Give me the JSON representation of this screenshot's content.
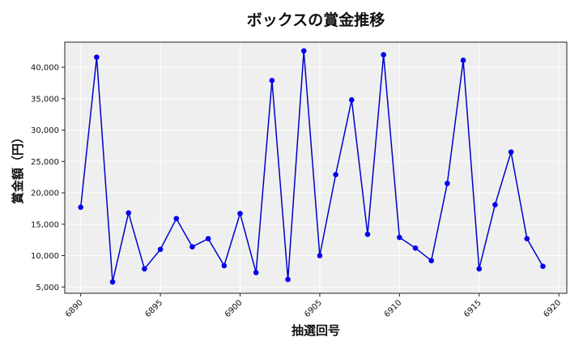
{
  "chart_data": {
    "type": "line",
    "title": "ボックスの賞金推移",
    "xlabel": "抽選回号",
    "ylabel": "賞金額（円）",
    "xlim": [
      6889,
      6920.5
    ],
    "ylim": [
      4000,
      44000
    ],
    "x_ticks": [
      6890,
      6895,
      6900,
      6905,
      6910,
      6915,
      6920
    ],
    "x_tick_labels": [
      "6890",
      "6895",
      "6900",
      "6905",
      "6910",
      "6915",
      "6920"
    ],
    "y_ticks": [
      5000,
      10000,
      15000,
      20000,
      25000,
      30000,
      35000,
      40000
    ],
    "y_tick_labels": [
      "5,000",
      "10,000",
      "15,000",
      "20,000",
      "25,000",
      "30,000",
      "35,000",
      "40,000"
    ],
    "grid": true,
    "colors": {
      "line": "#0000cc",
      "marker": "#0000ee",
      "plot_bg": "#efefef",
      "grid": "#ffffff"
    },
    "series": [
      {
        "x": [
          6890,
          6891,
          6892,
          6893,
          6894,
          6895,
          6896,
          6897,
          6898,
          6899,
          6900,
          6901,
          6902,
          6903,
          6904,
          6905,
          6906,
          6907,
          6908,
          6909,
          6910,
          6911,
          6912,
          6913,
          6914,
          6915,
          6916,
          6917,
          6918,
          6919
        ],
        "y": [
          17700,
          41600,
          5800,
          16800,
          7900,
          11000,
          15900,
          11400,
          12700,
          8400,
          16700,
          7300,
          37900,
          6200,
          42600,
          10000,
          22900,
          34800,
          13400,
          42000,
          12900,
          11200,
          9200,
          21500,
          41100,
          7900,
          18100,
          26500,
          12700,
          8300
        ]
      }
    ]
  }
}
